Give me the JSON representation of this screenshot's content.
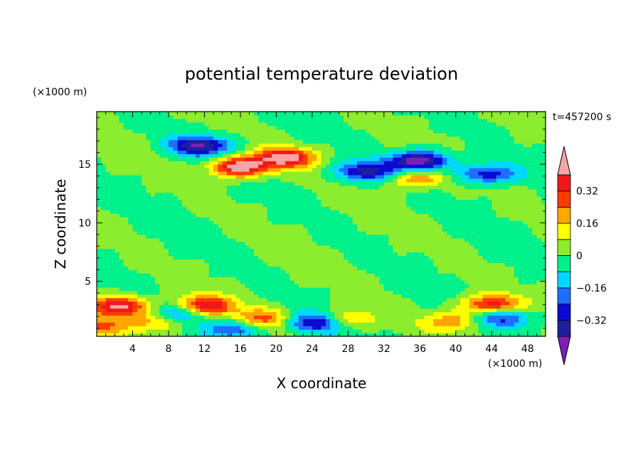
{
  "chart_data": {
    "type": "heatmap",
    "title": "potential temperature deviation",
    "xlabel": "X coordinate",
    "ylabel": "Z coordinate",
    "x_unit": "(×1000 m)",
    "y_unit": "(×1000 m)",
    "time_label": "t=457200 s",
    "xlim": [
      0,
      50
    ],
    "ylim": [
      0.3,
      19.5
    ],
    "x_ticks": [
      "4",
      "8",
      "12",
      "16",
      "20",
      "24",
      "28",
      "32",
      "36",
      "40",
      "44",
      "48"
    ],
    "x_tick_values": [
      4,
      8,
      12,
      16,
      20,
      24,
      28,
      32,
      36,
      40,
      44,
      48
    ],
    "y_ticks": [
      "5",
      "10",
      "15"
    ],
    "y_tick_values": [
      5,
      10,
      15
    ],
    "colorbar": {
      "levels": [
        -0.48,
        -0.4,
        -0.32,
        -0.24,
        -0.16,
        -0.08,
        0,
        0.08,
        0.16,
        0.24,
        0.32,
        0.4,
        0.48
      ],
      "colors": [
        "#7b1fb8",
        "#1f1f9e",
        "#0a0ad2",
        "#1f6fff",
        "#00d8ff",
        "#00f08c",
        "#8cec2e",
        "#ffff00",
        "#ffa600",
        "#ff3c00",
        "#f01818",
        "#f5a5a8"
      ],
      "labels": [
        "0.32",
        "0.16",
        "0",
        "−0.16",
        "−0.32"
      ],
      "label_values": [
        0.32,
        0.16,
        0,
        -0.16,
        -0.32
      ]
    },
    "features": [
      {
        "x": 16,
        "z": 14.8,
        "v": 0.5
      },
      {
        "x": 21,
        "z": 15.6,
        "v": 0.44
      },
      {
        "x": 12,
        "z": 2.9,
        "v": 0.44
      },
      {
        "x": 2.5,
        "z": 2.9,
        "v": 0.44
      },
      {
        "x": 44,
        "z": 3.0,
        "v": 0.4
      },
      {
        "x": 11.5,
        "z": 16.6,
        "v": -0.4
      },
      {
        "x": 30,
        "z": 14.4,
        "v": -0.36
      },
      {
        "x": 36,
        "z": 15.3,
        "v": -0.48
      },
      {
        "x": 43.5,
        "z": 14.2,
        "v": -0.32
      },
      {
        "x": 24.5,
        "z": 1.5,
        "v": -0.36
      },
      {
        "x": 9.5,
        "z": 2.3,
        "v": -0.26
      },
      {
        "x": 15.5,
        "z": 1.0,
        "v": -0.26
      },
      {
        "x": 45.2,
        "z": 2.0,
        "v": -0.3
      },
      {
        "x": 35.5,
        "z": 13.8,
        "v": 0.26
      },
      {
        "x": 18.3,
        "z": 1.8,
        "v": 0.28
      },
      {
        "x": 27.8,
        "z": 1.8,
        "v": 0.22
      },
      {
        "x": 39.5,
        "z": 1.6,
        "v": 0.22
      },
      {
        "x": 7,
        "z": 1.6,
        "v": 0.2
      },
      {
        "x": 0.5,
        "z": 1.2,
        "v": 0.22
      }
    ]
  }
}
